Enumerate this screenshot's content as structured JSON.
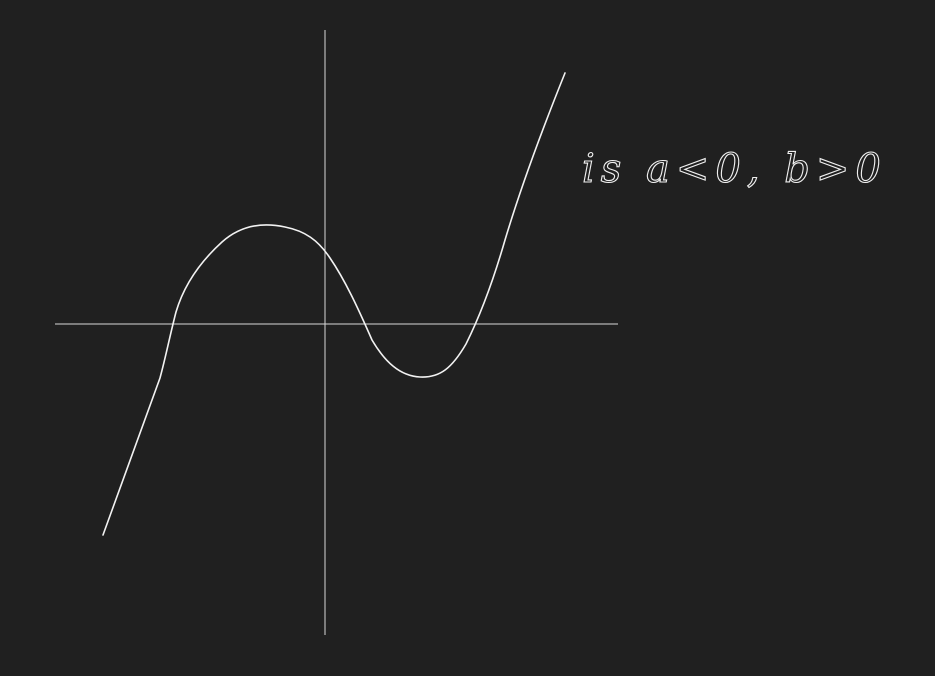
{
  "annotation": "is a<0, b>0"
}
